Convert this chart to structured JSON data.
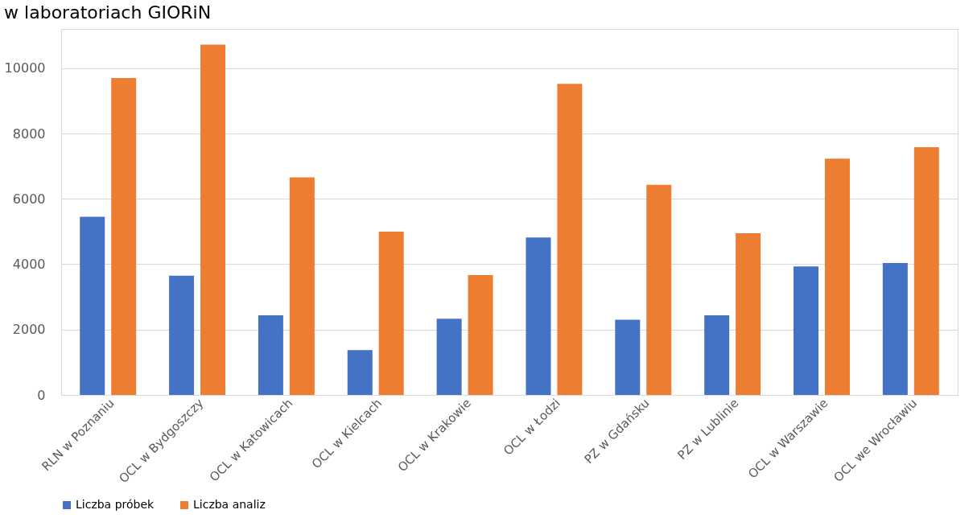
{
  "chart_data": {
    "type": "bar",
    "title": "w laboratoriach GIORiN",
    "categories": [
      "RLN w Poznaniu",
      "OCL w Bydgoszczy",
      "OCL w Katowicach",
      "OCL w Kielcach",
      "OCL w Krakowie",
      "OCL w Łodzi",
      "PZ w Gdańsku",
      "PZ w Lublinie",
      "OCL w Warszawie",
      "OCL we Wrocławiu"
    ],
    "series": [
      {
        "name": "Liczba próbek",
        "color": "#4472c4",
        "values": [
          5450,
          3650,
          2440,
          1370,
          2330,
          4820,
          2300,
          2440,
          3930,
          4040
        ]
      },
      {
        "name": "Liczba analiz",
        "color": "#ed7d31",
        "values": [
          9700,
          10720,
          6660,
          5000,
          3670,
          9520,
          6430,
          4950,
          7230,
          7580
        ]
      }
    ],
    "ylim": [
      0,
      11200
    ],
    "yticks": [
      0,
      2000,
      4000,
      6000,
      8000,
      10000
    ],
    "grid": "y",
    "legend": "bottom"
  }
}
